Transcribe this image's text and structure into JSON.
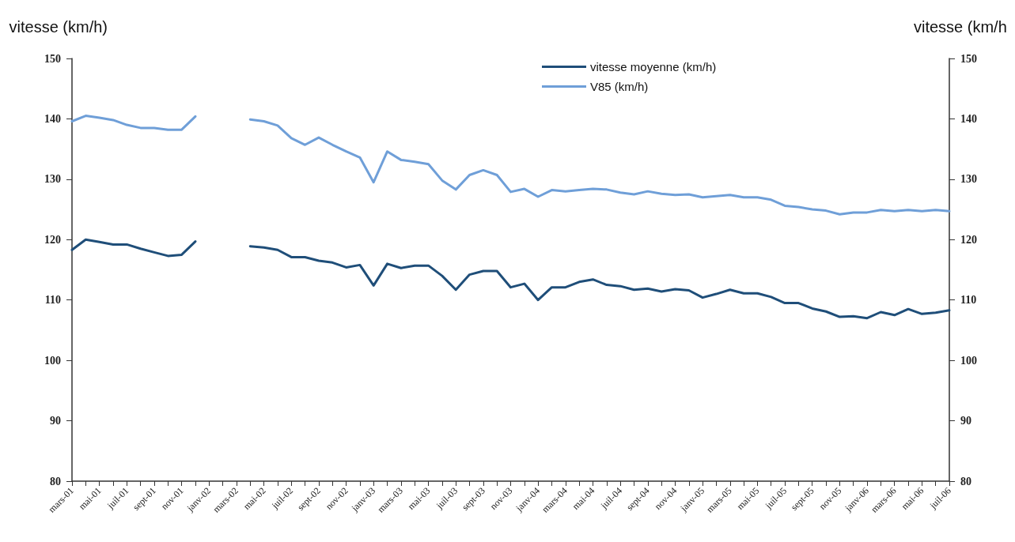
{
  "chart_data": {
    "type": "line",
    "ylabel": "vitesse (km/h)",
    "y2label": "vitesse (km/h",
    "categories": [
      "mars-01",
      null,
      "mai-01",
      null,
      "juil-01",
      null,
      "sept-01",
      null,
      "nov-01",
      null,
      "janv-02",
      null,
      "mars-02",
      null,
      "mai-02",
      null,
      "juil-02",
      null,
      "sept-02",
      null,
      "nov-02",
      null,
      "janv-03",
      null,
      "mars-03",
      null,
      "mai-03",
      null,
      "juil-03",
      null,
      "sept-03",
      null,
      "nov-03",
      null,
      "janv-04",
      null,
      "mars-04",
      null,
      "mai-04",
      null,
      "juil-04",
      null,
      "sept-04",
      null,
      "nov-04",
      null,
      "janv-05",
      null,
      "mars-05",
      null,
      "mai-05",
      null,
      "juil-05",
      null,
      "sept-05",
      null,
      "nov-05",
      null,
      "janv-06",
      null,
      "mars-06",
      null,
      "mai-06",
      null,
      "juil-06"
    ],
    "series": [
      {
        "name": "vitesse moyenne (km/h)",
        "color": "#1f4e79",
        "values": [
          118.3,
          120.0,
          119.6,
          119.2,
          119.2,
          118.5,
          117.9,
          117.3,
          117.5,
          119.7,
          null,
          null,
          null,
          118.9,
          118.7,
          118.3,
          117.1,
          117.1,
          116.5,
          116.2,
          115.4,
          115.8,
          112.4,
          116.0,
          115.3,
          115.7,
          115.7,
          114.0,
          111.7,
          114.2,
          114.8,
          114.8,
          112.1,
          112.7,
          110.0,
          112.1,
          112.1,
          113.0,
          113.4,
          112.5,
          112.3,
          111.7,
          111.9,
          111.4,
          111.8,
          111.6,
          110.4,
          111.0,
          111.7,
          111.1,
          111.1,
          110.5,
          109.5,
          109.5,
          108.6,
          108.1,
          107.2,
          107.3,
          107.0,
          108.0,
          107.5,
          108.5,
          107.7,
          107.9,
          108.3
        ]
      },
      {
        "name": "V85 (km/h)",
        "color": "#6f9fd8",
        "values": [
          139.6,
          140.5,
          140.2,
          139.8,
          139.0,
          138.5,
          138.5,
          138.2,
          138.2,
          140.4,
          null,
          null,
          null,
          139.9,
          139.6,
          138.9,
          136.8,
          135.7,
          136.9,
          135.7,
          134.6,
          133.6,
          129.5,
          134.6,
          133.2,
          132.9,
          132.5,
          129.8,
          128.3,
          130.7,
          131.5,
          130.7,
          127.9,
          128.4,
          127.1,
          128.2,
          128.0,
          128.2,
          128.4,
          128.3,
          127.8,
          127.5,
          128.0,
          127.6,
          127.4,
          127.5,
          127.0,
          127.2,
          127.4,
          127.0,
          127.0,
          126.6,
          125.6,
          125.4,
          125.0,
          124.8,
          124.2,
          124.5,
          124.5,
          124.9,
          124.7,
          124.9,
          124.7,
          124.9,
          124.7
        ]
      }
    ],
    "ylim": [
      80,
      150
    ],
    "yticks": [
      80,
      90,
      100,
      110,
      120,
      130,
      140,
      150
    ],
    "y2lim": [
      80,
      150
    ],
    "y2ticks": [
      80,
      90,
      100,
      110,
      120,
      130,
      140,
      150
    ],
    "grid": false,
    "legend": "top right",
    "marker": "none",
    "line_style": "solid"
  }
}
